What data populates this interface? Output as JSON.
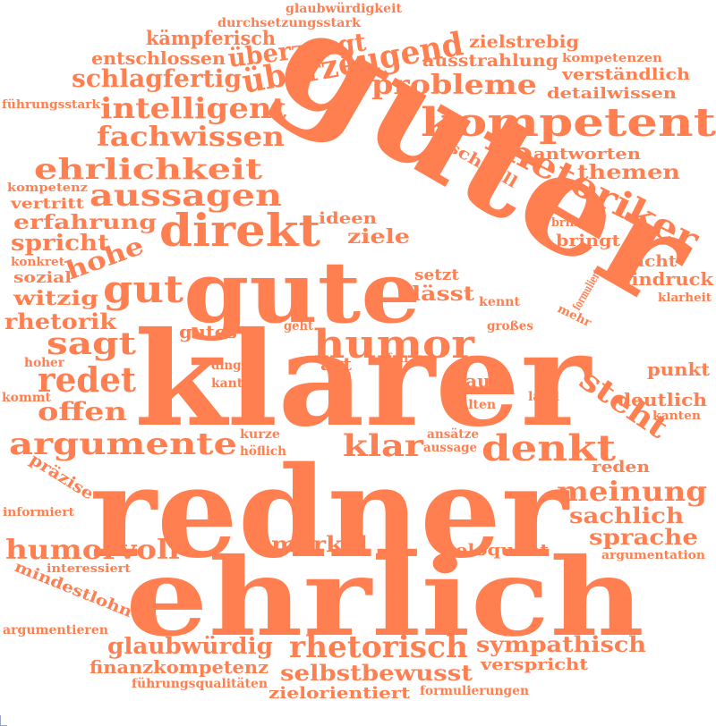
{
  "theme": {
    "word_color": "#ff7f50",
    "background": "#ffffff"
  },
  "words": [
    "redner",
    "klarer",
    "ehrlich",
    "guter",
    "gute",
    "kompetent",
    "humor",
    "direkt",
    "rhetoriker",
    "denkt",
    "überzeugend",
    "probleme",
    "intelligent",
    "fachwissen",
    "ehrlichkeit",
    "aussagen",
    "argumente",
    "gut",
    "sagt",
    "redet",
    "klar",
    "steht",
    "meinung",
    "humorvoll",
    "rhetorisch",
    "überzeugt",
    "schlagfertig",
    "kämpferisch",
    "entschlossen",
    "offen",
    "sympathisch",
    "glaubwürdig",
    "selbstbewusst",
    "merkel",
    "sachlich",
    "sprache",
    "ausstrahlung",
    "erfahrung",
    "spricht",
    "hohe",
    "witzig",
    "rhetorik",
    "zielstrebig",
    "themen",
    "antworten",
    "verständlich",
    "detailwissen",
    "schnell",
    "lässt",
    "ziele",
    "ideen",
    "bringt",
    "macht",
    "eindruck",
    "art",
    "frau",
    "punkt",
    "deutlich",
    "gutes",
    "finanzkompetenz",
    "zielorientiert",
    "verspricht",
    "eloquent",
    "reden",
    "präzise",
    "mindestlohn",
    "glaubwürdigkeit",
    "durchsetzungsstark",
    "führungsstark",
    "kompetenz",
    "vertritt",
    "konkret",
    "sozial",
    "setzt",
    "kennt",
    "klarheit",
    "mehr",
    "formuliert",
    "großes",
    "geht",
    "hoher",
    "kommt",
    "fair",
    "dinge",
    "kante",
    "land",
    "halten",
    "kanten",
    "kurze",
    "ansätze",
    "aussage",
    "höflich",
    "informiert",
    "interessiert",
    "argumentation",
    "argumentieren",
    "führungsqualitäten",
    "formulierungen",
    "kompetenzen",
    "bringen"
  ]
}
